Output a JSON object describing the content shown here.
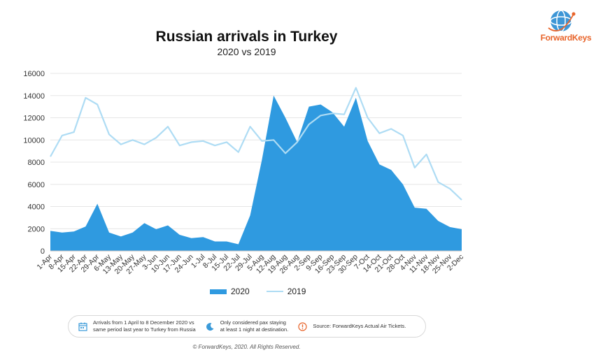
{
  "header": {
    "title": "Russian arrivals in Turkey",
    "subtitle": "2020 vs 2019"
  },
  "logo": {
    "text": "ForwardKeys",
    "icon": "globe-logo-icon",
    "color": "#e8642a"
  },
  "legend": {
    "series_2020": "2020",
    "series_2019": "2019"
  },
  "info": {
    "item1": {
      "icon": "calendar-icon",
      "line1": "Arrivals from 1 April to 8 December 2020 vs",
      "line2": "same period last year to Turkey from Russia"
    },
    "item2": {
      "icon": "moon-icon",
      "line1": "Only considered pax staying",
      "line2": "at least 1 night at destination."
    },
    "item3": {
      "icon": "alert-icon",
      "line1": "Source: ForwardKeys Actual Air Tickets."
    }
  },
  "footer": {
    "text": "© ForwardKeys, 2020. All Rights Reserved."
  },
  "colors": {
    "area_2020": "#2f9ae0",
    "line_2019": "#aedcf4",
    "grid": "#e6e6e6"
  },
  "chart_data": {
    "type": "area",
    "title": "Russian arrivals in Turkey",
    "subtitle": "2020 vs 2019",
    "categories": [
      "1-Apr",
      "8-Apr",
      "15-Apr",
      "22-Apr",
      "29-Apr",
      "6-May",
      "13-May",
      "20-May",
      "27-May",
      "3-Jun",
      "10-Jun",
      "17-Jun",
      "24-Jun",
      "1-Jul",
      "8-Jul",
      "15-Jul",
      "22-Jul",
      "29-Jul",
      "5-Aug",
      "12-Aug",
      "19-Aug",
      "26-Aug",
      "2-Sep",
      "9-Sep",
      "16-Sep",
      "23-Sep",
      "30-Sep",
      "7-Oct",
      "14-Oct",
      "21-Oct",
      "28-Oct",
      "4-Nov",
      "11-Nov",
      "18-Nov",
      "25-Nov",
      "2-Dec"
    ],
    "ylim": [
      0,
      16000
    ],
    "yticks": [
      0,
      2000,
      4000,
      6000,
      8000,
      10000,
      12000,
      14000,
      16000
    ],
    "grid": true,
    "legend_position": "bottom",
    "series": [
      {
        "name": "2020",
        "type": "area",
        "values": [
          1800,
          1650,
          1750,
          2200,
          4250,
          1650,
          1300,
          1650,
          2500,
          1950,
          2300,
          1450,
          1150,
          1250,
          850,
          850,
          600,
          3200,
          8200,
          14000,
          12000,
          9800,
          13000,
          13200,
          12500,
          11200,
          13800,
          9900,
          7800,
          7300,
          6000,
          3900,
          3800,
          2700,
          2150,
          1950
        ]
      },
      {
        "name": "2019",
        "type": "line",
        "values": [
          8500,
          10400,
          10700,
          13800,
          13200,
          10500,
          9600,
          10000,
          9600,
          10200,
          11200,
          9500,
          9800,
          9900,
          9500,
          9800,
          8900,
          11200,
          9900,
          10000,
          8800,
          9800,
          11400,
          12200,
          12400,
          12300,
          14700,
          12000,
          10600,
          11000,
          10400,
          7500,
          8700,
          6200,
          5600,
          4600
        ]
      }
    ]
  }
}
